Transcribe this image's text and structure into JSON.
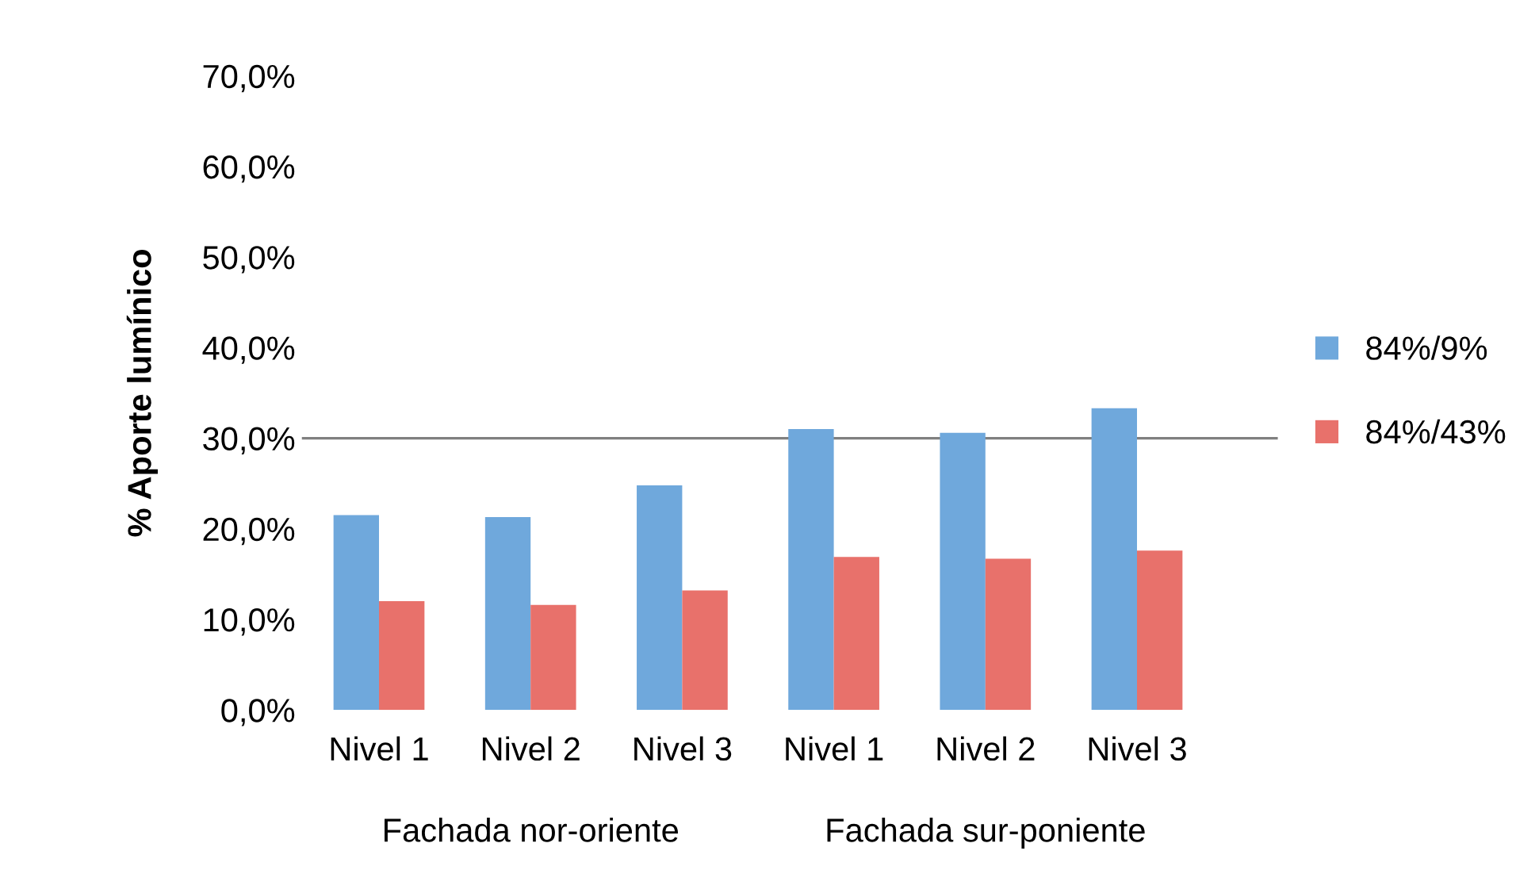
{
  "chart_data": {
    "type": "bar",
    "ylabel": "% Aporte lumínico",
    "categories": [
      "Nivel 1",
      "Nivel 2",
      "Nivel 3",
      "Nivel 1",
      "Nivel 2",
      "Nivel 3"
    ],
    "series": [
      {
        "name": "84%/9%",
        "color": "#6fa8dc",
        "values": [
          21.5,
          21.3,
          24.8,
          31.0,
          30.6,
          33.3
        ]
      },
      {
        "name": "84%/43%",
        "color": "#e8716b",
        "values": [
          12.0,
          11.6,
          13.2,
          16.9,
          16.7,
          17.6
        ]
      }
    ],
    "ylim": [
      0,
      70
    ],
    "yticks": [
      {
        "value": 0,
        "label": "0,0%"
      },
      {
        "value": 10,
        "label": "10,0%"
      },
      {
        "value": 20,
        "label": "20,0%"
      },
      {
        "value": 30,
        "label": "30,0%"
      },
      {
        "value": 40,
        "label": "40,0%"
      },
      {
        "value": 50,
        "label": "50,0%"
      },
      {
        "value": 60,
        "label": "60,0%"
      },
      {
        "value": 70,
        "label": "70,0%"
      }
    ],
    "ref_lines": [
      {
        "axis": "y",
        "value": 30,
        "color": "#808080"
      }
    ],
    "annotations": [
      "Fachada nor-oriente",
      "Fachada sur-poniente"
    ],
    "legend": "right",
    "grid": false
  }
}
